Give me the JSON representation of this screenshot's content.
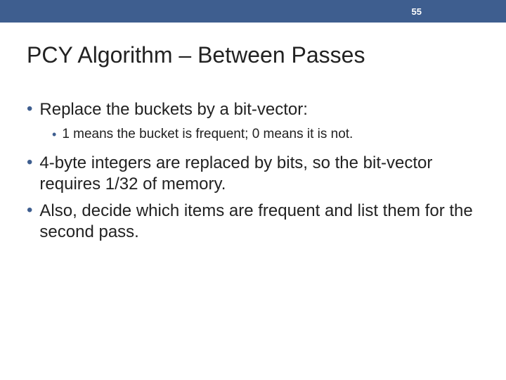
{
  "header": {
    "page_number": "55",
    "bar_color": "#3e5e8f",
    "text_color": "#ffffff"
  },
  "title": {
    "text": "PCY Algorithm – Between Passes",
    "color": "#222222",
    "fontsize": 32
  },
  "bullets": [
    {
      "level": 1,
      "text": "Replace the buckets by a bit-vector:",
      "bullet_color": "#3e5e8f",
      "text_color": "#222222",
      "fontsize": 24
    },
    {
      "level": 2,
      "text": "1 means the bucket is frequent; 0 means it is not.",
      "bullet_color": "#3e5e8f",
      "text_color": "#222222",
      "fontsize": 19
    },
    {
      "level": 1,
      "text": "4-byte integers are replaced by bits, so the bit-vector requires 1/32 of memory.",
      "bullet_color": "#3e5e8f",
      "text_color": "#222222",
      "fontsize": 24
    },
    {
      "level": 1,
      "text": "Also, decide which items are frequent and list them for the second pass.",
      "bullet_color": "#3e5e8f",
      "text_color": "#222222",
      "fontsize": 24
    }
  ],
  "background_color": "#ffffff"
}
